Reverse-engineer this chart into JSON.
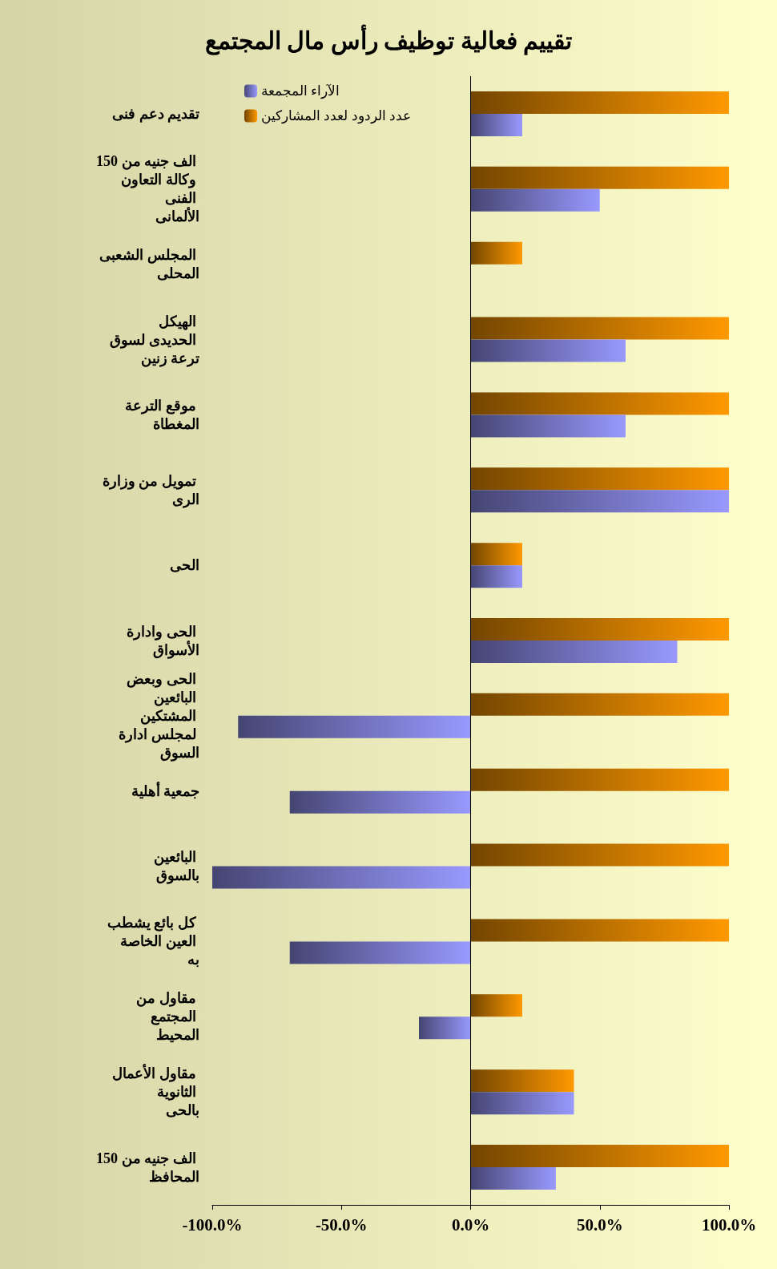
{
  "chart_data": {
    "type": "bar",
    "title": "تقييم فعالية توظيف رأس مال المجتمع",
    "orientation": "horizontal",
    "categories": [
      "تقديم دعم فنى",
      "150 الف جنيه من وكالة التعاون الفنى الألمانى",
      "المجلس الشعبى المحلى",
      "الهيكل الحديدى لسوق ترعة زنين",
      "موقع الترعة المغطاة",
      "تمويل من وزارة الرى",
      "الحى",
      "الحى وادارة الأسواق",
      "الحى وبعض البائعين المشتكين لمجلس ادارة السوق",
      "جمعية أهلية",
      "البائعين بالسوق",
      "كل بائع يشطب العين الخاصة به",
      "مقاول من المجتمع المحيط",
      "مقاول الأعمال الثانوية بالحى",
      "150 الف جنيه من المحافظ"
    ],
    "series": [
      {
        "name": "عدد الردود لعدد المشاركين",
        "color": "#ff9900",
        "values": [
          100,
          100,
          20,
          100,
          100,
          100,
          20,
          100,
          100,
          100,
          100,
          100,
          20,
          40,
          100
        ]
      },
      {
        "name": "الآراء المجمعة",
        "color": "#9999ff",
        "values": [
          20,
          50,
          0,
          60,
          60,
          100,
          20,
          80,
          -90,
          -70,
          -100,
          -70,
          -20,
          40,
          33
        ]
      }
    ],
    "xlim": [
      -100,
      100
    ],
    "xticks": [
      {
        "value": -100,
        "label": "-100.0%"
      },
      {
        "value": -50,
        "label": "-50.0%"
      },
      {
        "value": 0,
        "label": "0.0%"
      },
      {
        "value": 50,
        "label": "50.0%"
      },
      {
        "value": 100,
        "label": "100.0%"
      }
    ],
    "ref_lines": [
      {
        "axis": "x",
        "value": 0,
        "color": "#000000"
      }
    ],
    "grid": false,
    "legend": "top left"
  }
}
